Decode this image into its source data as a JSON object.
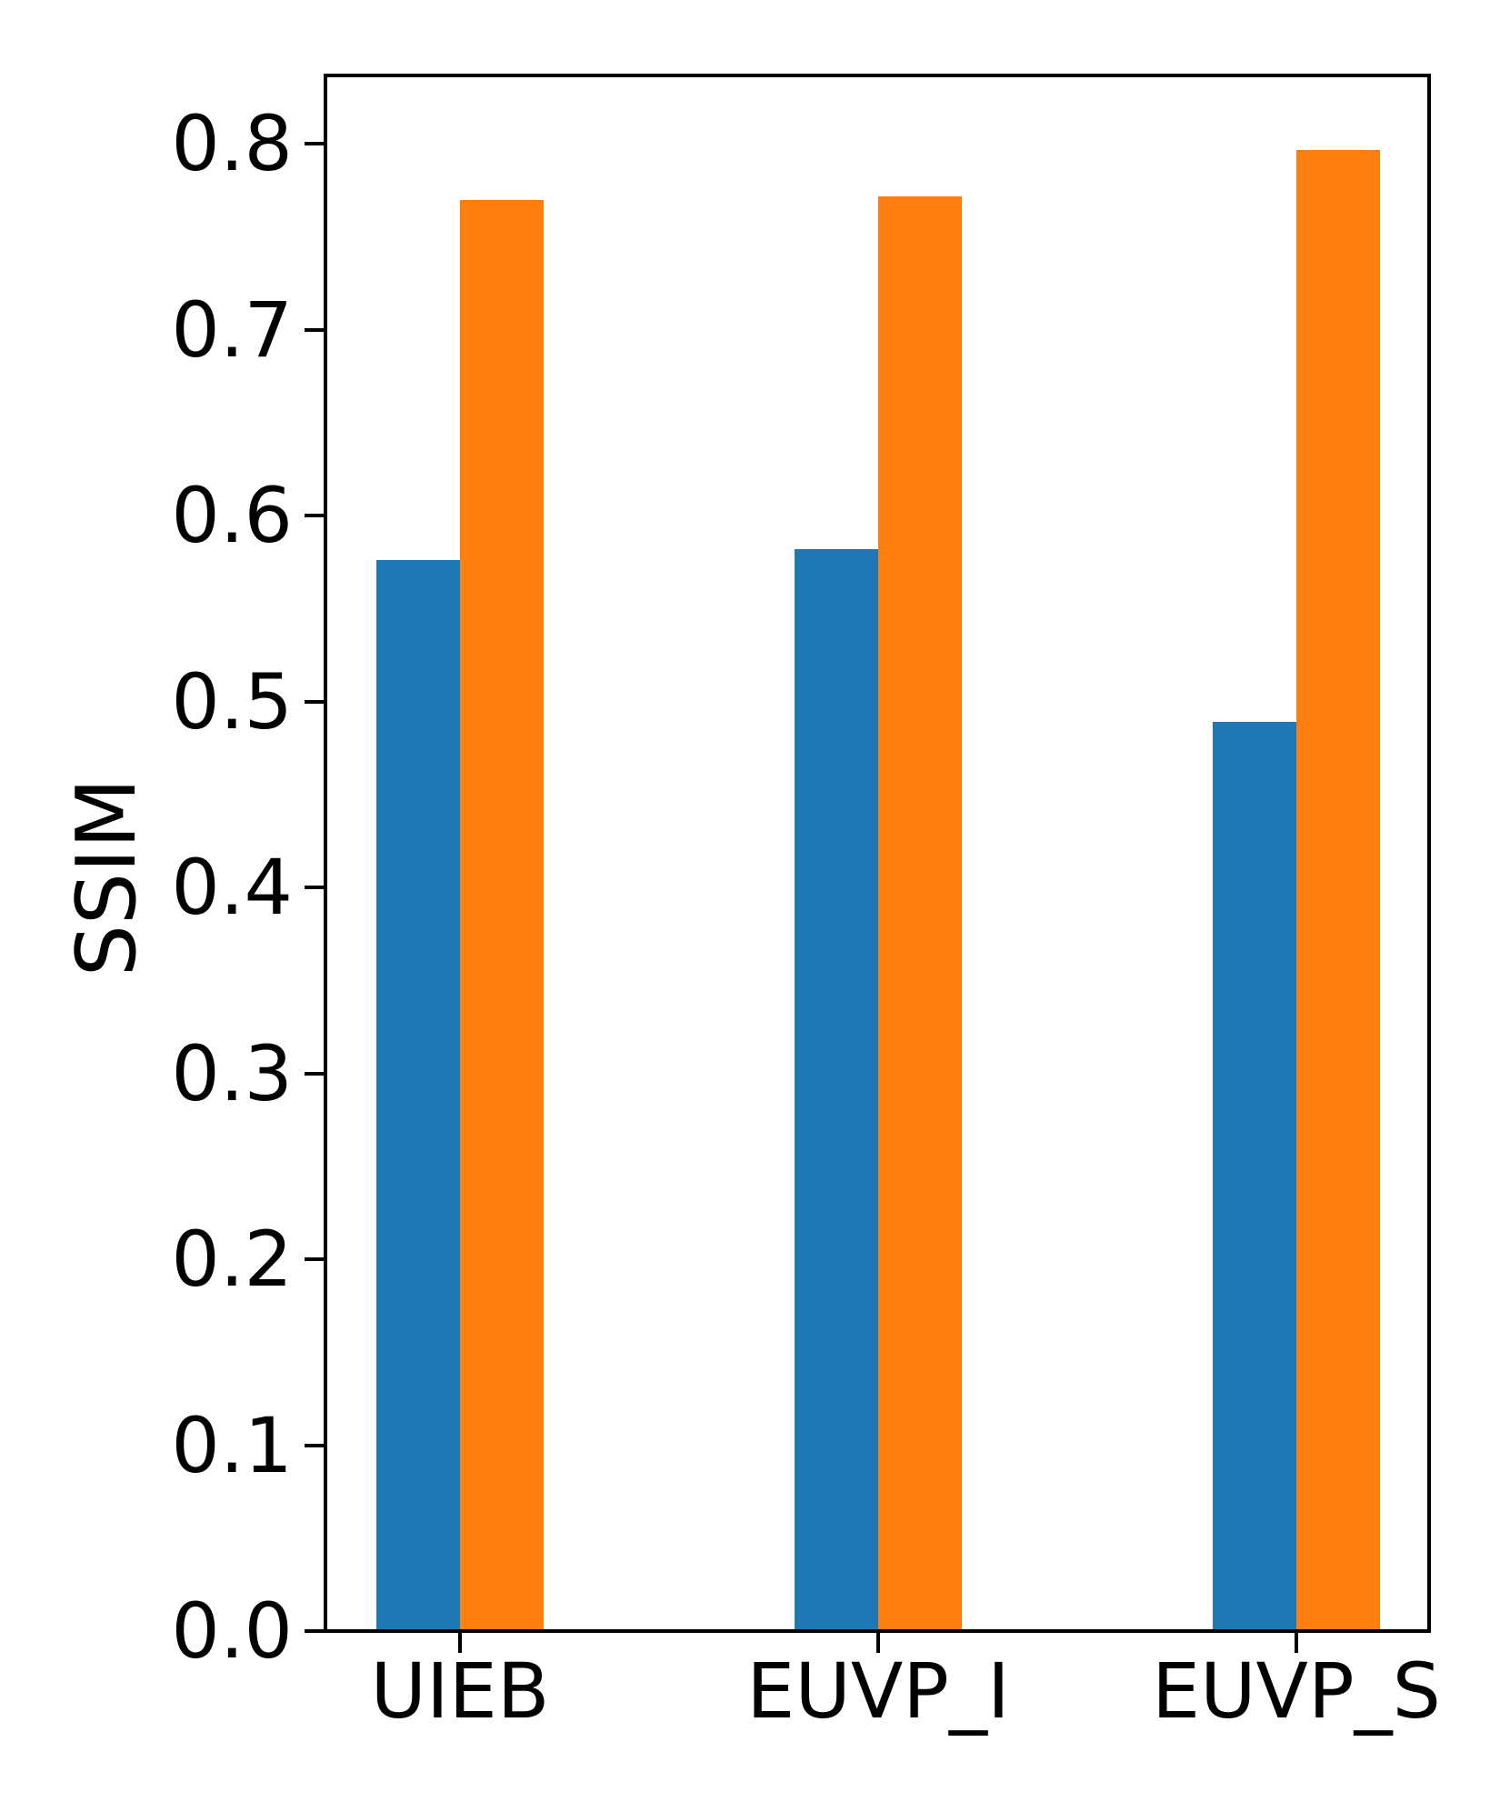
{
  "figure": {
    "background": "#ffffff",
    "axis_color": "#000000"
  },
  "chart_data": {
    "type": "bar",
    "title": "",
    "xlabel": "",
    "ylabel": "SSIM",
    "categories": [
      "UIEB",
      "EUVP_I",
      "EUVP_S"
    ],
    "series": [
      {
        "name": "blue-series",
        "color": "#1f77b4",
        "values": [
          0.576,
          0.582,
          0.489
        ]
      },
      {
        "name": "orange-series",
        "color": "#ff7f0e",
        "values": [
          0.77,
          0.772,
          0.797
        ]
      }
    ],
    "ylim": [
      0.0,
      0.837
    ],
    "yticks": [
      {
        "value": 0.0,
        "label": "0.0"
      },
      {
        "value": 0.1,
        "label": "0.1"
      },
      {
        "value": 0.2,
        "label": "0.2"
      },
      {
        "value": 0.3,
        "label": "0.3"
      },
      {
        "value": 0.4,
        "label": "0.4"
      },
      {
        "value": 0.5,
        "label": "0.5"
      },
      {
        "value": 0.6,
        "label": "0.6"
      },
      {
        "value": 0.7,
        "label": "0.7"
      },
      {
        "value": 0.8,
        "label": "0.8"
      }
    ],
    "grid": false,
    "legend": "none"
  }
}
